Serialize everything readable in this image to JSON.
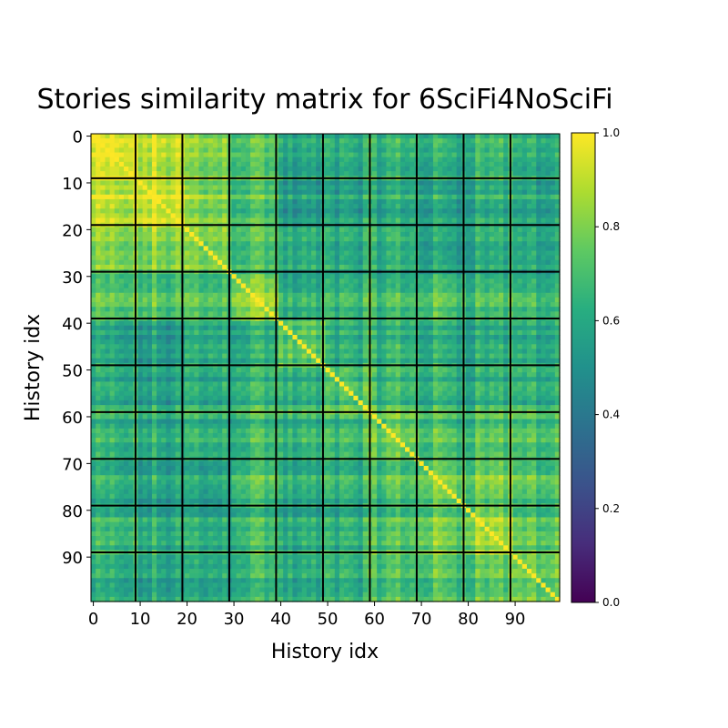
{
  "chart_data": {
    "type": "heatmap",
    "title": "Stories similarity matrix for 6SciFi4NoSciFi",
    "xlabel": "History idx",
    "ylabel": "History idx",
    "size": 100,
    "block_size": 10,
    "x_ticks": [
      "0",
      "10",
      "20",
      "30",
      "40",
      "50",
      "60",
      "70",
      "80",
      "90"
    ],
    "y_ticks": [
      "0",
      "10",
      "20",
      "30",
      "40",
      "50",
      "60",
      "70",
      "80",
      "90"
    ],
    "colorbar": {
      "range": [
        0,
        1
      ],
      "ticks": [
        "0.0",
        "0.2",
        "0.4",
        "0.6",
        "0.8",
        "1.0"
      ]
    },
    "colormap": "viridis",
    "diagonal_value": 1.0,
    "block_means": [
      [
        0.92,
        0.88,
        0.78,
        0.72,
        0.55,
        0.6,
        0.62,
        0.6,
        0.65,
        0.6
      ],
      [
        0.88,
        0.93,
        0.8,
        0.72,
        0.52,
        0.58,
        0.6,
        0.57,
        0.62,
        0.58
      ],
      [
        0.78,
        0.8,
        0.8,
        0.72,
        0.6,
        0.62,
        0.63,
        0.58,
        0.62,
        0.6
      ],
      [
        0.72,
        0.72,
        0.72,
        0.85,
        0.62,
        0.68,
        0.68,
        0.72,
        0.7,
        0.68
      ],
      [
        0.55,
        0.52,
        0.6,
        0.62,
        0.7,
        0.62,
        0.62,
        0.6,
        0.6,
        0.6
      ],
      [
        0.6,
        0.58,
        0.62,
        0.68,
        0.62,
        0.72,
        0.68,
        0.65,
        0.65,
        0.65
      ],
      [
        0.62,
        0.6,
        0.63,
        0.68,
        0.62,
        0.68,
        0.75,
        0.7,
        0.72,
        0.7
      ],
      [
        0.6,
        0.57,
        0.58,
        0.72,
        0.6,
        0.65,
        0.7,
        0.78,
        0.78,
        0.72
      ],
      [
        0.65,
        0.62,
        0.62,
        0.7,
        0.6,
        0.65,
        0.72,
        0.78,
        0.85,
        0.75
      ],
      [
        0.6,
        0.58,
        0.6,
        0.68,
        0.6,
        0.65,
        0.7,
        0.72,
        0.75,
        0.78
      ]
    ]
  }
}
